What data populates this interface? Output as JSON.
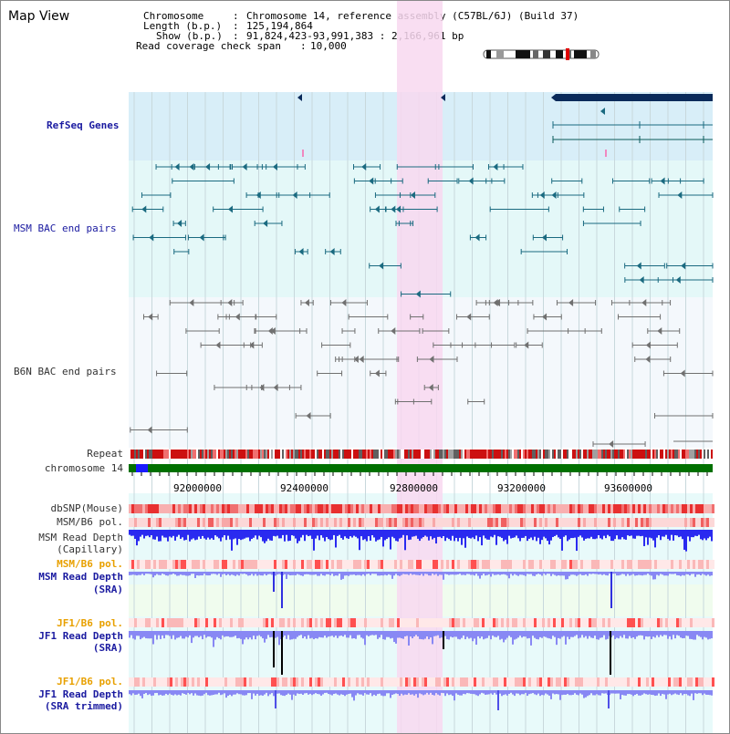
{
  "window": {
    "title": "Map View"
  },
  "info": {
    "chromosome_key": "Chromosome",
    "chromosome_val": "Chromosome 14, reference assembly (C57BL/6J) (Build 37)",
    "length_key": "Length (b.p.)",
    "length_val": "125,194,864",
    "show_key": "Show (b.p.)",
    "show_val": "91,824,423-93,991,383 : 2,166,961 bp",
    "span_key": "Read coverage check span",
    "span_val": "10,000"
  },
  "tracks": {
    "refseq": "RefSeq Genes",
    "msm_bac": "MSM BAC end pairs",
    "b6n_bac": "B6N BAC end pairs",
    "repeat": "Repeat",
    "chromosome": "chromosome 14",
    "dbsnp": "dbSNP(Mouse)",
    "msm_b6_pol_1": "MSM/B6 pol.",
    "msm_read_cap_1": "MSM Read Depth",
    "msm_read_cap_2": "(Capillary)",
    "msm_b6_pol_2": "MSM/B6 pol.",
    "msm_read_sra_1": "MSM Read Depth",
    "msm_read_sra_2": "(SRA)",
    "jf1_b6_pol_1": "JF1/B6 pol.",
    "jf1_read_sra_1": "JF1 Read Depth",
    "jf1_read_sra_2": "(SRA)",
    "jf1_b6_pol_2": "JF1/B6 pol.",
    "jf1_trim_1": "JF1 Read Depth",
    "jf1_trim_2": "(SRA trimmed)"
  },
  "axis": {
    "ticks": [
      "92000000",
      "92400000",
      "92800000",
      "93200000",
      "93600000"
    ]
  },
  "colors": {
    "highlight": "#f8d8f0",
    "refseq_bg": "#d8eef8",
    "msm_bg": "#e4f8f8",
    "b6n_bg": "#f4f8fc",
    "gene_dark": "#0a2a5a",
    "msm_pair": "#1a6a80",
    "b6n_pair": "#707070",
    "depth_blue": "#2222ee",
    "depth_light": "#8888f4",
    "chrom_green": "#007000"
  }
}
